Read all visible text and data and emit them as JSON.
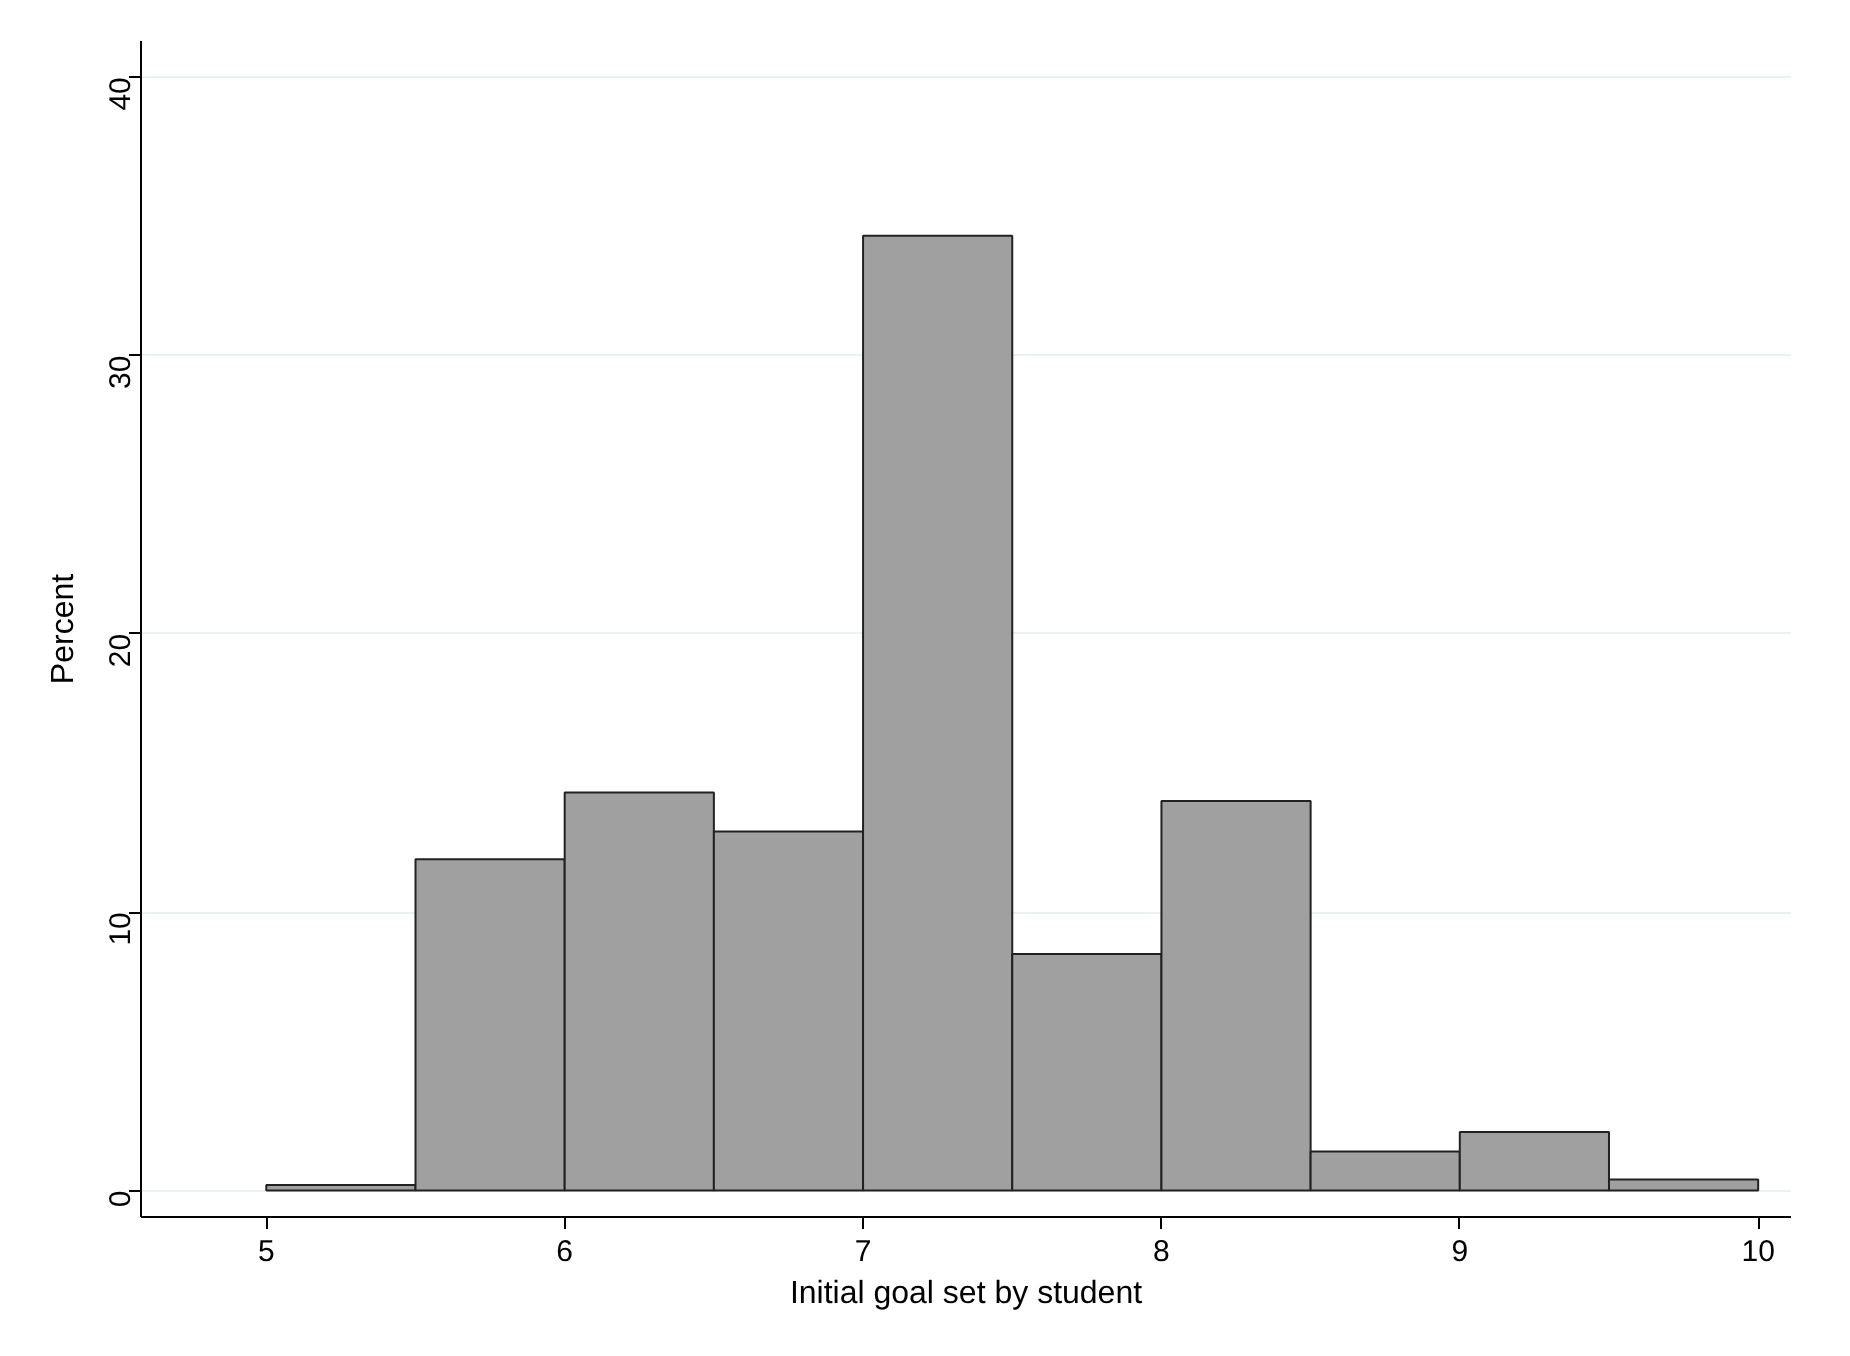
{
  "chart_data": {
    "type": "histogram",
    "xlabel": "Initial goal set by student",
    "ylabel": "Percent",
    "bins": [
      5,
      5.5,
      6,
      6.5,
      7,
      7.5,
      8,
      8.5,
      9,
      9.5,
      10
    ],
    "values": [
      0.2,
      11.9,
      14.3,
      12.9,
      34.3,
      8.5,
      14.0,
      1.4,
      2.1,
      0.4
    ],
    "color": "#a0a0a0",
    "xlim": [
      4.58,
      10.11
    ],
    "ylim": [
      -0.95,
      41.3
    ],
    "xticks": [
      5,
      6,
      7,
      8,
      9,
      10
    ],
    "yticks": [
      0,
      10,
      20,
      30,
      40
    ],
    "grid": "y"
  }
}
